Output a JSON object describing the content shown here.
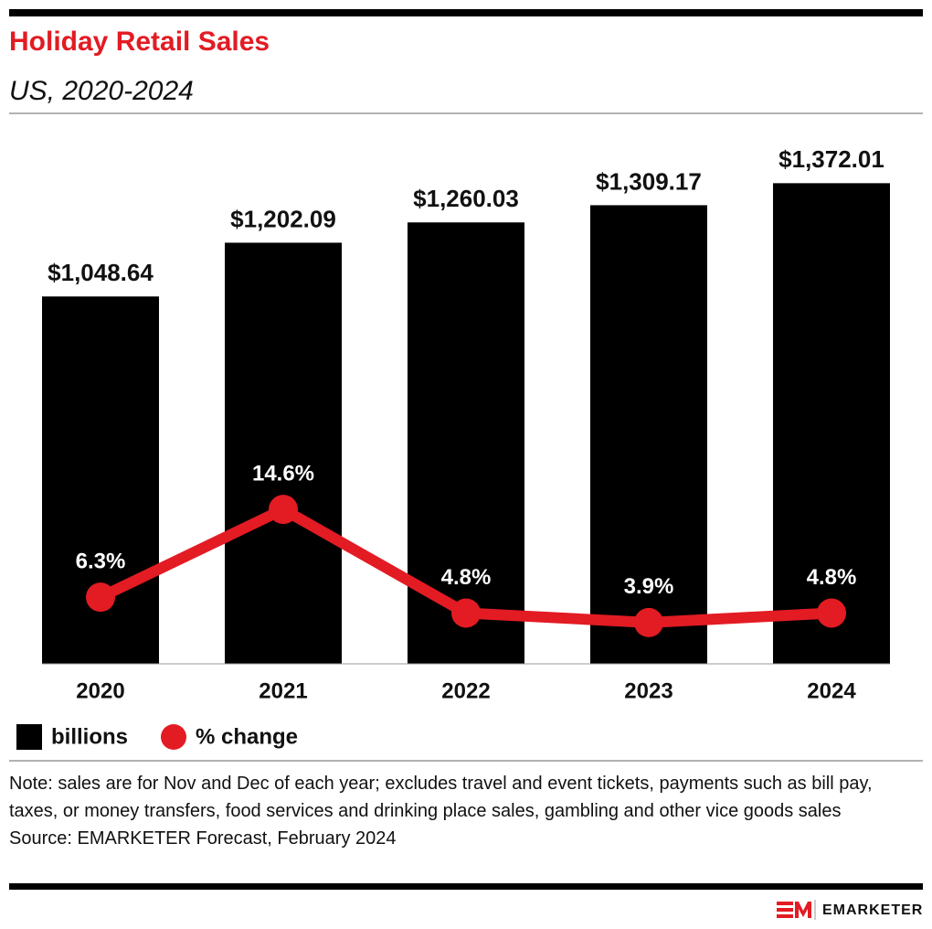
{
  "chart_data": {
    "type": "bar",
    "title": "Holiday Retail Sales",
    "subtitle": "US, 2020-2024",
    "categories": [
      "2020",
      "2021",
      "2022",
      "2023",
      "2024"
    ],
    "series": [
      {
        "name": "billions",
        "type": "bar",
        "color": "#000000",
        "values": [
          1048.64,
          1202.09,
          1260.03,
          1309.17,
          1372.01
        ],
        "value_labels": [
          "$1,048.64",
          "$1,202.09",
          "$1,260.03",
          "$1,309.17",
          "$1,372.01"
        ]
      },
      {
        "name": "% change",
        "type": "line",
        "axis": "y2",
        "color": "#e31b23",
        "values": [
          6.3,
          14.6,
          4.8,
          3.9,
          4.8
        ],
        "value_labels": [
          "6.3%",
          "14.6%",
          "4.8%",
          "3.9%",
          "4.8%"
        ]
      }
    ],
    "ylim": [
      0,
      1600
    ],
    "y2lim": [
      0,
      53
    ],
    "grid": false,
    "note": "Note: sales are for Nov and Dec of each year; excludes travel and event tickets, payments such as bill pay, taxes, or money transfers, food services and drinking place sales, gambling and other vice goods sales",
    "source": "Source: EMARKETER Forecast, February 2024",
    "brand": "EMARKETER"
  }
}
